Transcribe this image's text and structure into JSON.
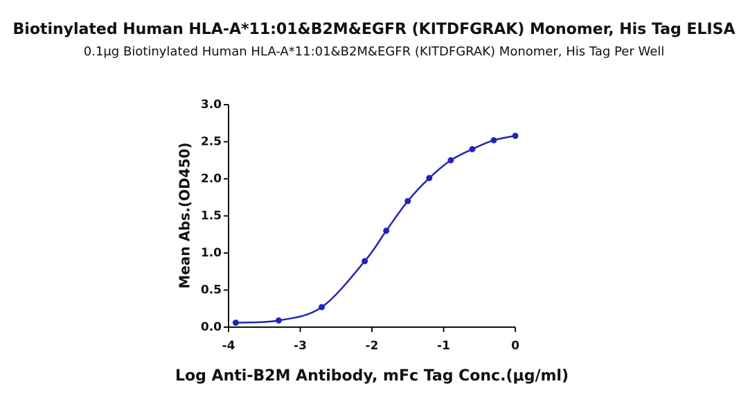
{
  "chart_data": {
    "type": "scatter",
    "title": "Biotinylated Human HLA-A*11:01&B2M&EGFR (KITDFGRAK) Monomer, His Tag ELISA",
    "subtitle": "0.1μg Biotinylated Human HLA-A*11:01&B2M&EGFR (KITDFGRAK) Monomer, His Tag Per Well",
    "x_label": "Log Anti-B2M Antibody, mFc Tag Conc.(μg/ml)",
    "y_label": "Mean Abs.(OD450)",
    "x": [
      -3.9,
      -3.3,
      -2.7,
      -2.1,
      -1.8,
      -1.5,
      -1.2,
      -0.9,
      -0.6,
      -0.3,
      0
    ],
    "series": [
      {
        "color": "#2424b4",
        "values": [
          0.06,
          0.09,
          0.27,
          0.89,
          1.3,
          1.7,
          2.01,
          2.25,
          2.4,
          2.52,
          2.58
        ]
      }
    ],
    "xlim": [
      -4,
      0
    ],
    "xticks": [
      -4,
      -3,
      -2,
      -1,
      0
    ],
    "ylim": [
      0,
      3
    ],
    "yticks": [
      {
        "value": 0,
        "label": "0.0"
      },
      0.5,
      {
        "value": 1,
        "label": "1.0"
      },
      1.5,
      {
        "value": 2,
        "label": "2.0"
      },
      2.5,
      {
        "value": 3,
        "label": "3.0"
      }
    ]
  }
}
